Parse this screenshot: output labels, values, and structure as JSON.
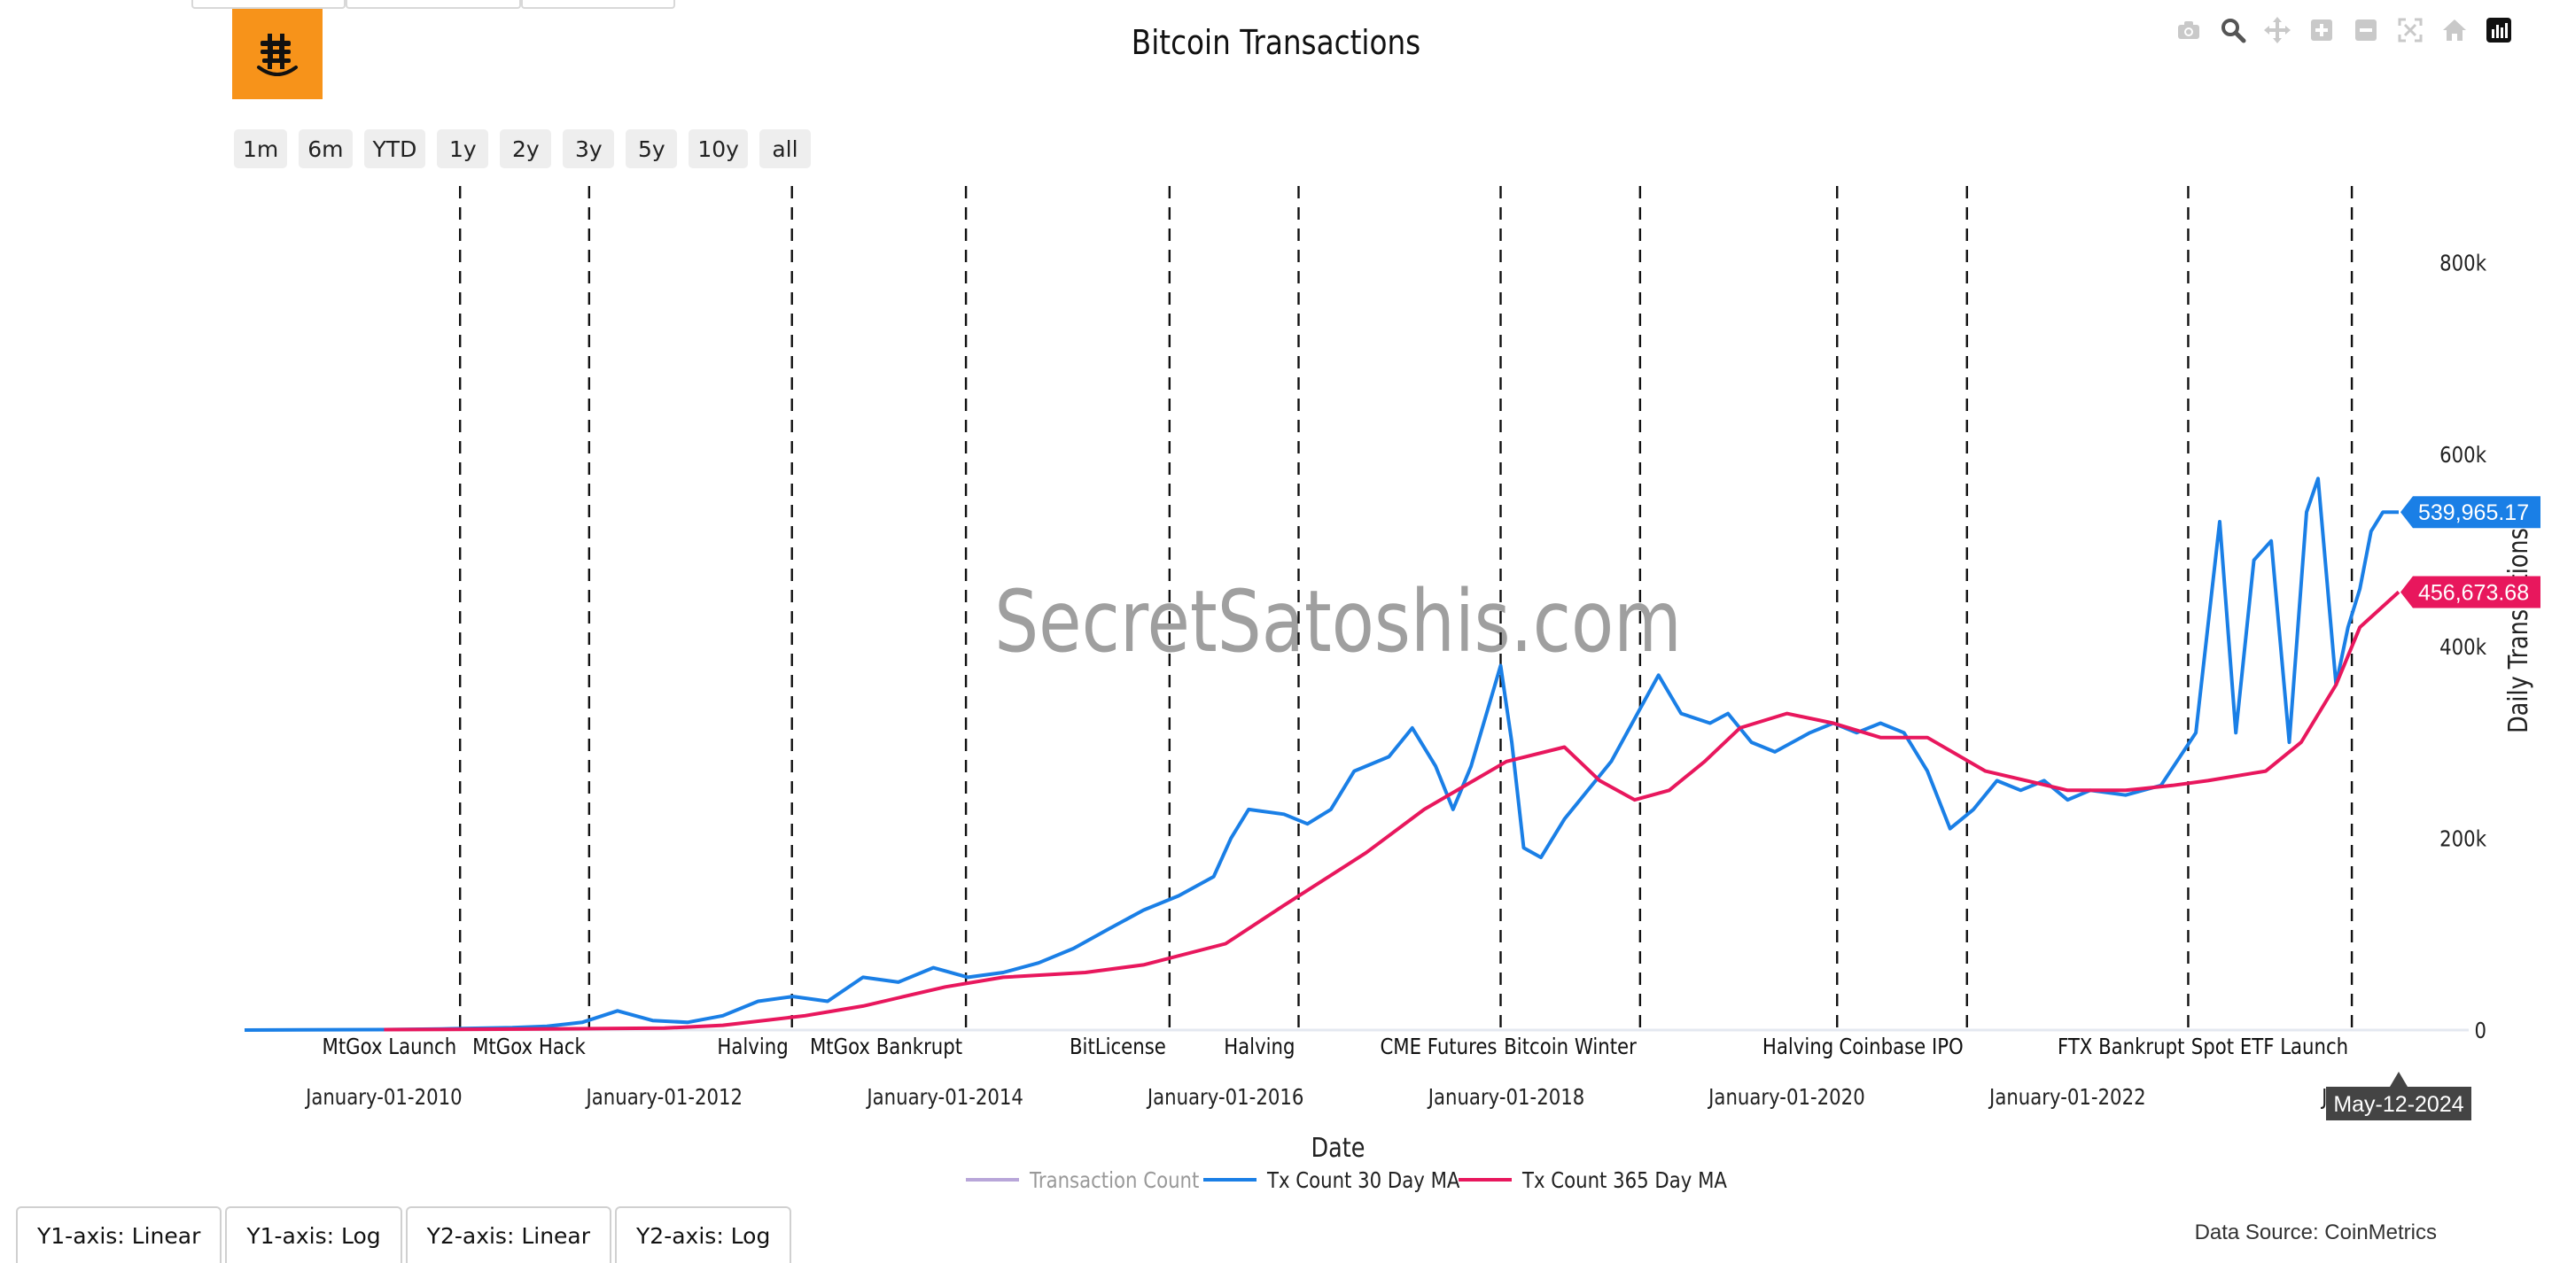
{
  "title": "Bitcoin Transactions",
  "watermark": "SecretSatoshis.com",
  "logo_icon": "bitcoin-smile-icon",
  "modebar": [
    {
      "name": "camera-icon"
    },
    {
      "name": "zoom-icon"
    },
    {
      "name": "pan-icon"
    },
    {
      "name": "zoom-in-icon"
    },
    {
      "name": "zoom-out-icon"
    },
    {
      "name": "autoscale-icon"
    },
    {
      "name": "home-icon"
    },
    {
      "name": "plotly-logo-icon"
    }
  ],
  "range_buttons": [
    "1m",
    "6m",
    "YTD",
    "1y",
    "2y",
    "3y",
    "5y",
    "10y",
    "all"
  ],
  "axis_buttons": [
    "Y1-axis: Linear",
    "Y1-axis: Log",
    "Y2-axis: Linear",
    "Y2-axis: Log"
  ],
  "data_source": "Data Source: CoinMetrics",
  "colors": {
    "tx_count": "#b8a6d9",
    "ma30": "#1a7fe6",
    "ma365": "#e8175d",
    "tooltip_bg": "#444444"
  },
  "chart_data": {
    "type": "line",
    "title": "Bitcoin Transactions",
    "xlabel": "Date",
    "ylabel": "Daily Transactions",
    "x_range": [
      "2009-01-03",
      "2024-12-31"
    ],
    "ylim": [
      0,
      880000
    ],
    "y_ticks": [
      0,
      200000,
      400000,
      600000,
      800000
    ],
    "y_tick_labels": [
      "0",
      "200k",
      "400k",
      "600k",
      "800k"
    ],
    "y_axis_side": "right",
    "x_ticks": [
      "2010-01-01",
      "2012-01-01",
      "2014-01-01",
      "2016-01-01",
      "2018-01-01",
      "2020-01-01",
      "2022-01-01",
      "2024-01-01"
    ],
    "x_tick_labels": [
      "January-01-2010",
      "January-01-2012",
      "January-01-2014",
      "January-01-2016",
      "January-01-2018",
      "January-01-2020",
      "January-01-2022",
      "Janua"
    ],
    "hover_date_label": "May-12-2024",
    "legend_position": "bottom-center",
    "events": [
      {
        "date": "2010-07-18",
        "label": "MtGox Launch"
      },
      {
        "date": "2011-06-19",
        "label": "MtGox Hack"
      },
      {
        "date": "2012-11-28",
        "label": "Halving"
      },
      {
        "date": "2014-02-24",
        "label": "MtGox Bankrupt"
      },
      {
        "date": "2015-08-08",
        "label": "BitLicense"
      },
      {
        "date": "2016-07-09",
        "label": "Halving"
      },
      {
        "date": "2017-12-17",
        "label": "CME Futures"
      },
      {
        "date": "2018-12-15",
        "label": "Bitcoin Winter"
      },
      {
        "date": "2020-05-11",
        "label": "Halving"
      },
      {
        "date": "2021-04-14",
        "label": "Coinbase IPO"
      },
      {
        "date": "2022-11-11",
        "label": "FTX Bankrupt"
      },
      {
        "date": "2024-01-11",
        "label": "Spot ETF Launch"
      }
    ],
    "series": [
      {
        "name": "Transaction Count",
        "visible": false,
        "x": [],
        "values": []
      },
      {
        "name": "Tx Count 30 Day MA",
        "last_value_label": "539,965.17",
        "x": [
          "2009-01-03",
          "2009-06-01",
          "2010-01-01",
          "2010-06-01",
          "2010-12-01",
          "2011-03-01",
          "2011-06-01",
          "2011-09-01",
          "2011-12-01",
          "2012-03-01",
          "2012-06-01",
          "2012-09-01",
          "2012-12-01",
          "2013-03-01",
          "2013-06-01",
          "2013-09-01",
          "2013-12-01",
          "2014-03-01",
          "2014-06-01",
          "2014-09-01",
          "2014-12-01",
          "2015-03-01",
          "2015-06-01",
          "2015-09-01",
          "2015-12-01",
          "2016-01-15",
          "2016-03-01",
          "2016-06-01",
          "2016-08-01",
          "2016-10-01",
          "2016-12-01",
          "2017-03-01",
          "2017-05-01",
          "2017-07-01",
          "2017-08-15",
          "2017-10-01",
          "2017-12-17",
          "2018-01-15",
          "2018-02-15",
          "2018-04-01",
          "2018-06-01",
          "2018-08-01",
          "2018-10-01",
          "2018-12-15",
          "2019-02-01",
          "2019-04-01",
          "2019-06-15",
          "2019-08-01",
          "2019-10-01",
          "2019-12-01",
          "2020-03-01",
          "2020-05-01",
          "2020-07-01",
          "2020-09-01",
          "2020-11-01",
          "2021-01-01",
          "2021-03-01",
          "2021-05-01",
          "2021-07-01",
          "2021-09-01",
          "2021-11-01",
          "2022-01-01",
          "2022-03-01",
          "2022-06-01",
          "2022-09-01",
          "2022-12-01",
          "2023-02-01",
          "2023-03-15",
          "2023-05-01",
          "2023-06-15",
          "2023-08-01",
          "2023-09-15",
          "2023-10-15",
          "2023-12-01",
          "2024-01-01",
          "2024-02-01",
          "2024-03-01",
          "2024-04-01",
          "2024-05-12"
        ],
        "values": [
          0,
          300,
          500,
          1200,
          2500,
          4000,
          8000,
          20000,
          10000,
          8000,
          15000,
          30000,
          35000,
          30000,
          55000,
          50000,
          65000,
          55000,
          60000,
          70000,
          85000,
          105000,
          125000,
          140000,
          160000,
          200000,
          230000,
          225000,
          215000,
          230000,
          270000,
          285000,
          315000,
          275000,
          230000,
          275000,
          380000,
          300000,
          190000,
          180000,
          220000,
          250000,
          280000,
          335000,
          370000,
          330000,
          320000,
          330000,
          300000,
          290000,
          310000,
          320000,
          310000,
          320000,
          310000,
          270000,
          210000,
          230000,
          260000,
          250000,
          260000,
          240000,
          250000,
          245000,
          255000,
          310000,
          530000,
          310000,
          490000,
          510000,
          300000,
          540000,
          575000,
          360000,
          420000,
          460000,
          520000,
          540000,
          539965
        ]
      },
      {
        "name": "Tx Count 365 Day MA",
        "last_value_label": "456,673.68",
        "x": [
          "2010-01-01",
          "2011-01-01",
          "2012-01-01",
          "2012-06-01",
          "2013-01-01",
          "2013-06-01",
          "2014-01-01",
          "2014-06-01",
          "2015-01-01",
          "2015-06-01",
          "2016-01-01",
          "2016-06-01",
          "2017-01-01",
          "2017-06-01",
          "2018-01-01",
          "2018-06-01",
          "2018-09-01",
          "2018-12-01",
          "2019-03-01",
          "2019-06-01",
          "2019-09-01",
          "2020-01-01",
          "2020-05-01",
          "2020-09-01",
          "2021-01-01",
          "2021-06-01",
          "2022-01-01",
          "2022-06-01",
          "2022-10-01",
          "2023-01-01",
          "2023-06-01",
          "2023-09-01",
          "2023-12-01",
          "2024-02-01",
          "2024-05-12"
        ],
        "values": [
          500,
          1000,
          2000,
          5000,
          15000,
          25000,
          45000,
          55000,
          60000,
          68000,
          90000,
          130000,
          185000,
          230000,
          280000,
          295000,
          260000,
          240000,
          250000,
          280000,
          315000,
          330000,
          320000,
          305000,
          305000,
          270000,
          250000,
          250000,
          255000,
          260000,
          270000,
          300000,
          360000,
          420000,
          456674
        ]
      }
    ]
  }
}
